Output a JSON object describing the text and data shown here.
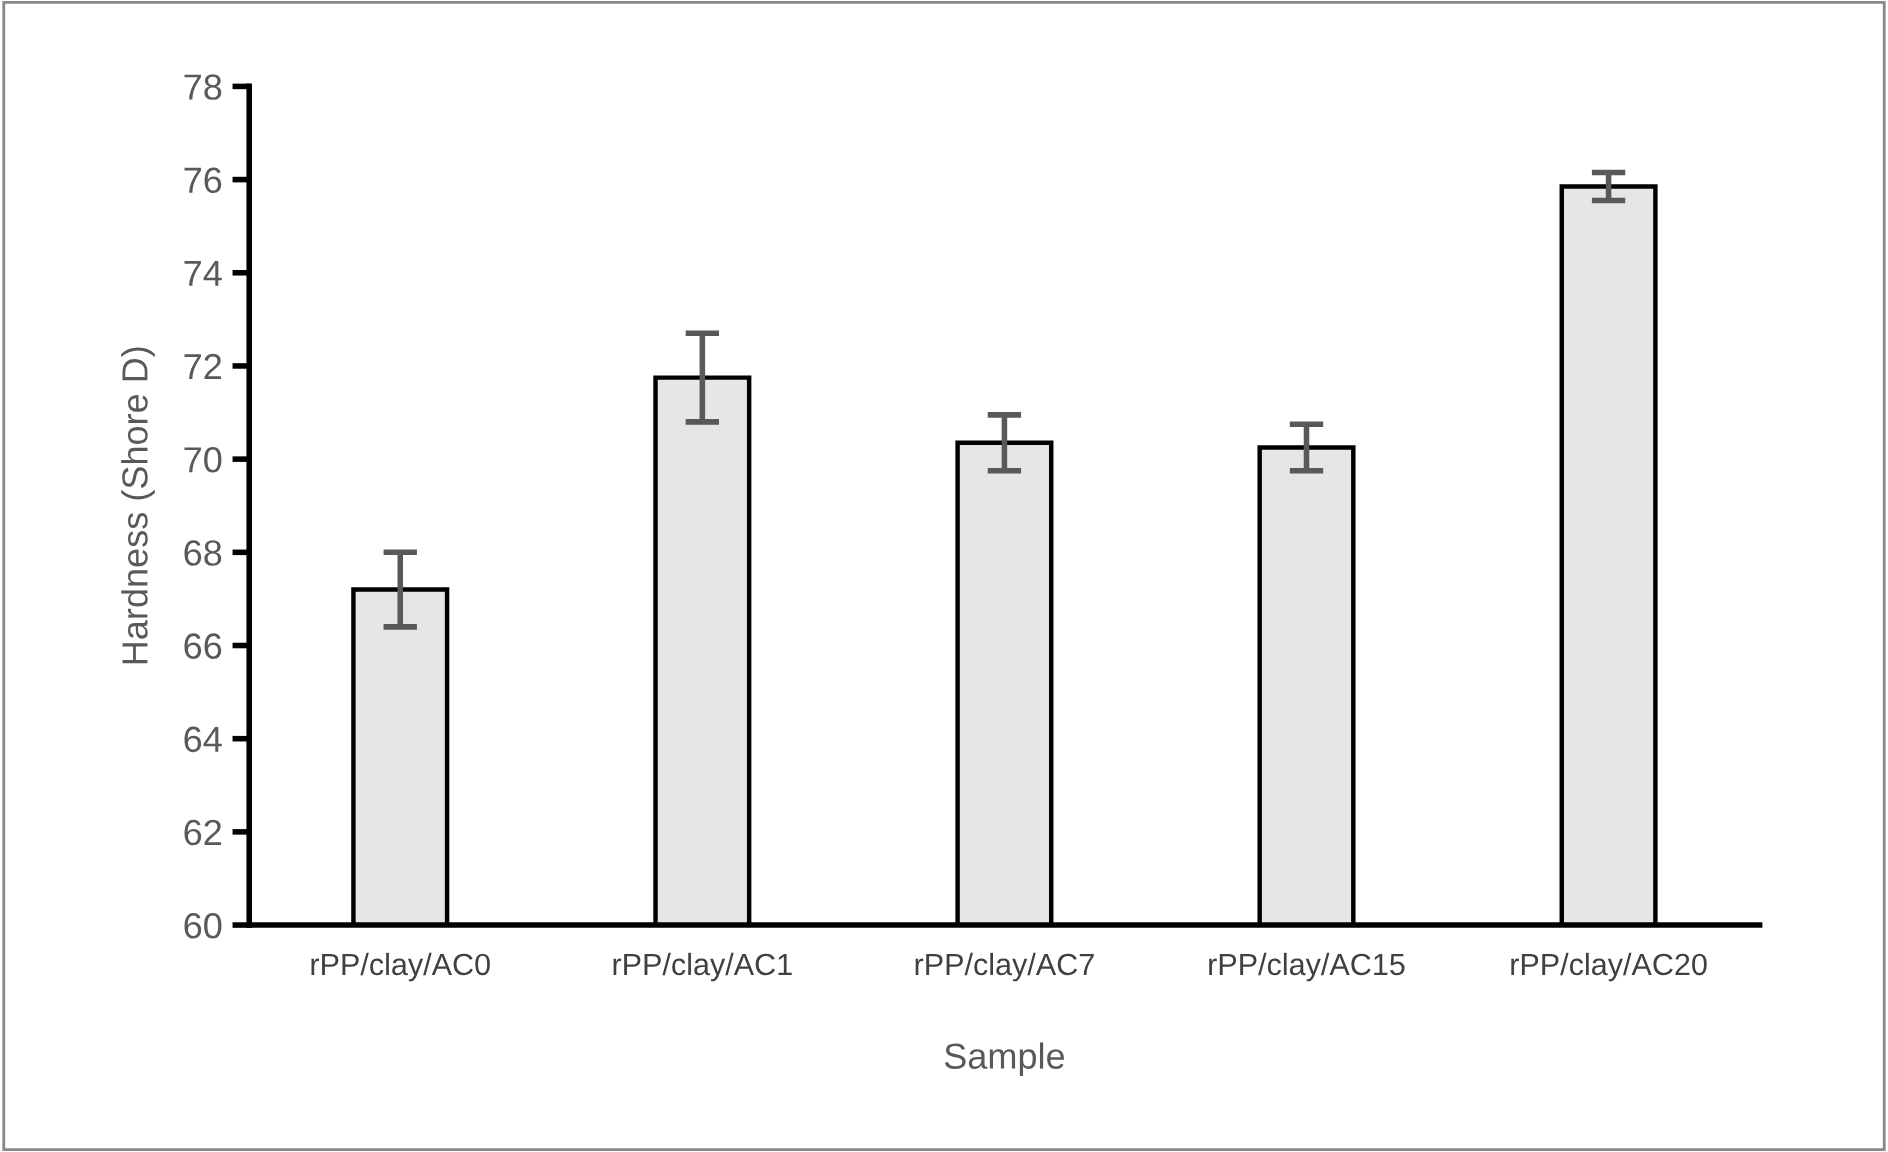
{
  "chart_data": {
    "type": "bar",
    "xlabel": "Sample",
    "ylabel": "Hardness (Shore D)",
    "categories": [
      "rPP/clay/AC0",
      "rPP/clay/AC1",
      "rPP/clay/AC7",
      "rPP/clay/AC15",
      "rPP/clay/AC20"
    ],
    "values": [
      67.2,
      71.75,
      70.35,
      70.25,
      75.85
    ],
    "errors": [
      0.8,
      0.95,
      0.6,
      0.5,
      0.3
    ],
    "color": "#e6e6e6",
    "ylim": [
      60,
      78
    ],
    "yticks": [
      60,
      62,
      64,
      66,
      68,
      70,
      72,
      74,
      76,
      78
    ],
    "grid": false,
    "legend": false
  }
}
